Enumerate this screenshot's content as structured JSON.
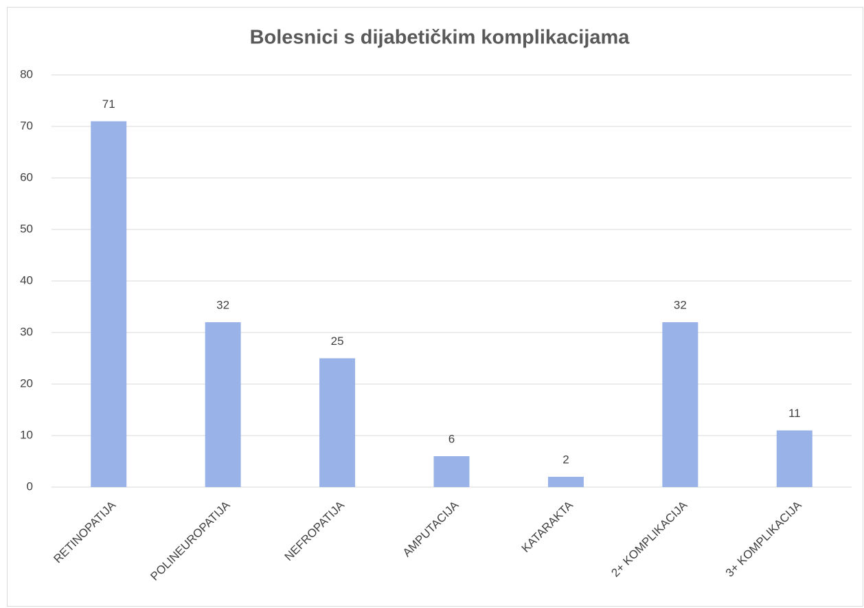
{
  "chart_data": {
    "type": "bar",
    "title": "Bolesnici s dijabetičkim komplikacijama",
    "categories": [
      "RETINOPATIJA",
      "POLINEUROPATIJA",
      "NEFROPATIJA",
      "AMPUTACIJA",
      "KATARAKTA",
      "2+ KOMPLIKACIJA",
      "3+ KOMPLIKACIJA"
    ],
    "values": [
      71,
      32,
      25,
      6,
      2,
      32,
      11
    ],
    "color": "#99b3e8",
    "ylim": [
      0,
      80
    ],
    "yticks": [
      0,
      10,
      20,
      30,
      40,
      50,
      60,
      70,
      80
    ],
    "grid": true
  }
}
